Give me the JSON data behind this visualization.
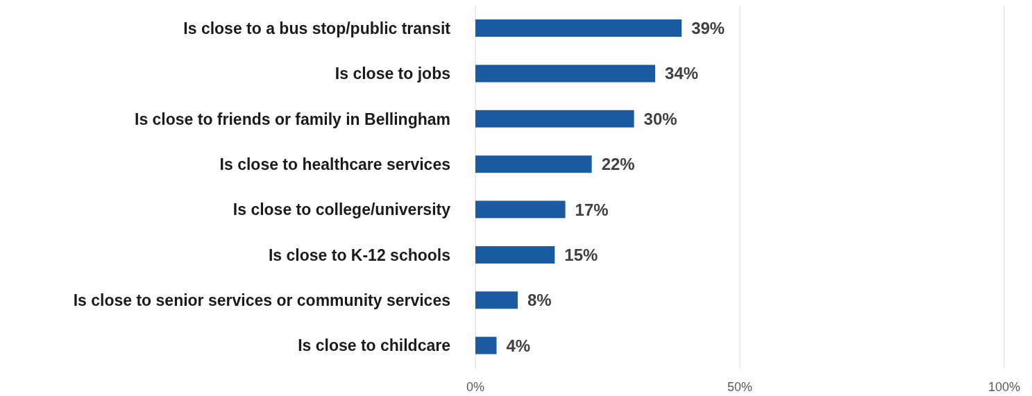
{
  "chart_data": {
    "type": "bar",
    "orientation": "horizontal",
    "categories": [
      "Is close to a bus stop/public transit",
      "Is close to jobs",
      "Is close to friends or family in Bellingham",
      "Is close to healthcare services",
      "Is close to college/university",
      "Is close to K-12 schools",
      "Is close to senior services or community services",
      "Is close to childcare"
    ],
    "values": [
      39,
      34,
      30,
      22,
      17,
      15,
      8,
      4
    ],
    "value_labels": [
      "39%",
      "34%",
      "30%",
      "22%",
      "17%",
      "15%",
      "8%",
      "4%"
    ],
    "color": "#1a5aa0",
    "xlim": [
      0,
      100
    ],
    "xticks": [
      {
        "value": 0,
        "label": "0%"
      },
      {
        "value": 50,
        "label": "50%"
      },
      {
        "value": 100,
        "label": "100%"
      }
    ],
    "grid": "x"
  }
}
